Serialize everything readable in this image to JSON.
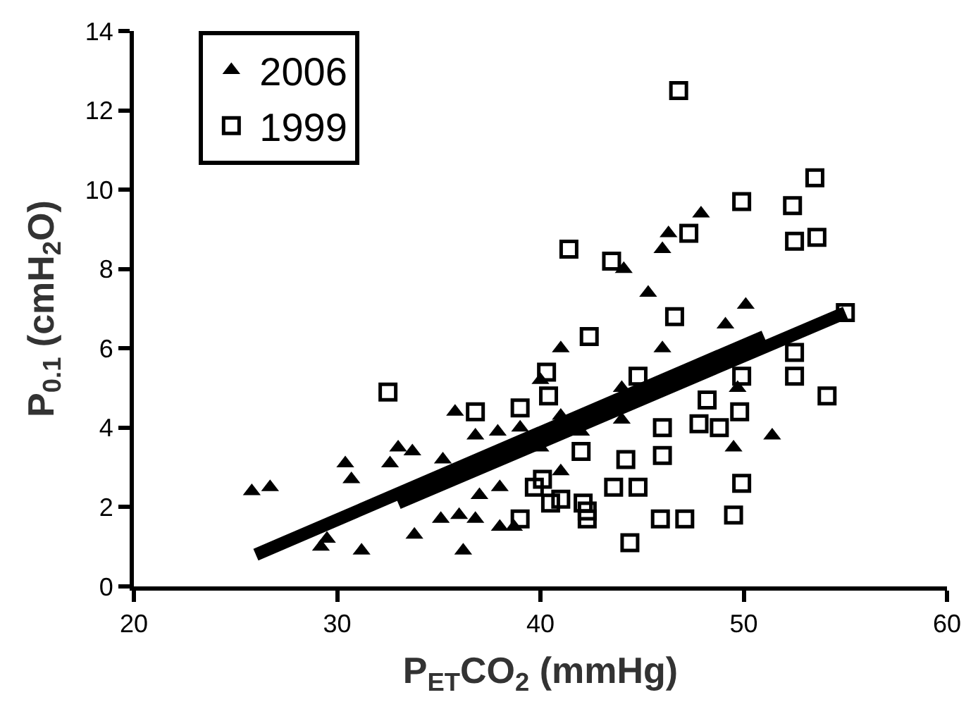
{
  "chart_data": {
    "type": "scatter",
    "xlabel": "P$_{ET}$CO$_{2}$ (mmHg)",
    "ylabel": "P$_{0.1}$ (cmH$_{2}$O)",
    "xlim": [
      20,
      60
    ],
    "xticks": [
      20,
      30,
      40,
      50,
      60
    ],
    "ylim": [
      0,
      14
    ],
    "yticks": [
      0,
      2,
      4,
      6,
      8,
      10,
      12,
      14
    ],
    "legend": "top left",
    "series": [
      {
        "name": "2006",
        "color": "#000000",
        "marker": "triangle",
        "x": [
          25.8,
          26.7,
          30.4,
          30.7,
          33.0,
          32.6,
          33.7,
          35.2,
          35.8,
          36.8,
          37.9,
          35.1,
          36.0,
          36.8,
          33.8,
          29.5,
          29.2,
          31.2,
          36.2,
          38.0,
          38.7,
          41.0,
          46.0,
          49.1,
          50.1,
          45.3,
          44.1,
          46.0,
          46.3,
          47.9,
          49.7,
          49.5,
          51.4,
          39,
          40,
          41,
          42,
          44,
          41,
          44,
          40,
          38,
          37
        ],
        "values": [
          2.4,
          2.5,
          3.1,
          2.7,
          3.5,
          3.1,
          3.4,
          3.2,
          4.4,
          3.8,
          3.9,
          1.7,
          1.8,
          1.7,
          1.3,
          1.2,
          1.0,
          0.9,
          0.9,
          1.5,
          1.5,
          6.0,
          6.0,
          6.6,
          7.1,
          7.4,
          8.0,
          8.5,
          8.9,
          9.4,
          5.0,
          3.5,
          3.8,
          4.0,
          3.5,
          4.3,
          3.9,
          4.2,
          2.9,
          5.0,
          5.2,
          2.5,
          2.3
        ]
      },
      {
        "name": "1999",
        "color": "#000000",
        "marker": "square",
        "x": [
          46.8,
          49.9,
          53.5,
          52.4,
          52.5,
          53.6,
          47.3,
          41.4,
          43.5,
          46.6,
          42.4,
          55.0,
          40.3,
          44.8,
          52.5,
          52.5,
          49.9,
          32.5,
          36.8,
          39.0,
          40.4,
          40.5,
          39.0,
          39.7,
          54.1,
          46.0,
          46.0,
          47.8,
          48.8,
          49.8,
          48.2,
          49.9,
          49.5,
          45.9,
          47.1,
          44.4,
          44.2,
          44.8,
          43.6,
          42.3,
          42.3,
          42.1,
          40.1,
          42.0,
          41.0
        ],
        "values": [
          12.5,
          9.7,
          10.3,
          9.6,
          8.7,
          8.8,
          8.9,
          8.5,
          8.2,
          6.8,
          6.3,
          6.9,
          5.4,
          5.3,
          5.9,
          5.3,
          5.3,
          4.9,
          4.4,
          4.5,
          4.8,
          2.1,
          1.7,
          2.5,
          4.8,
          4.0,
          3.3,
          4.1,
          4.0,
          4.4,
          4.7,
          2.6,
          1.8,
          1.7,
          1.7,
          1.1,
          3.2,
          2.5,
          2.5,
          1.9,
          1.7,
          2.1,
          2.7,
          3.4,
          2.2
        ]
      },
      {
        "type": "line",
        "color": "#000000",
        "marker": "none",
        "x": [
          26,
          51
        ],
        "values": [
          0.8,
          6.3
        ]
      },
      {
        "type": "line",
        "color": "#000000",
        "marker": "none",
        "x": [
          33,
          55
        ],
        "values": [
          2.1,
          6.9
        ]
      }
    ]
  }
}
